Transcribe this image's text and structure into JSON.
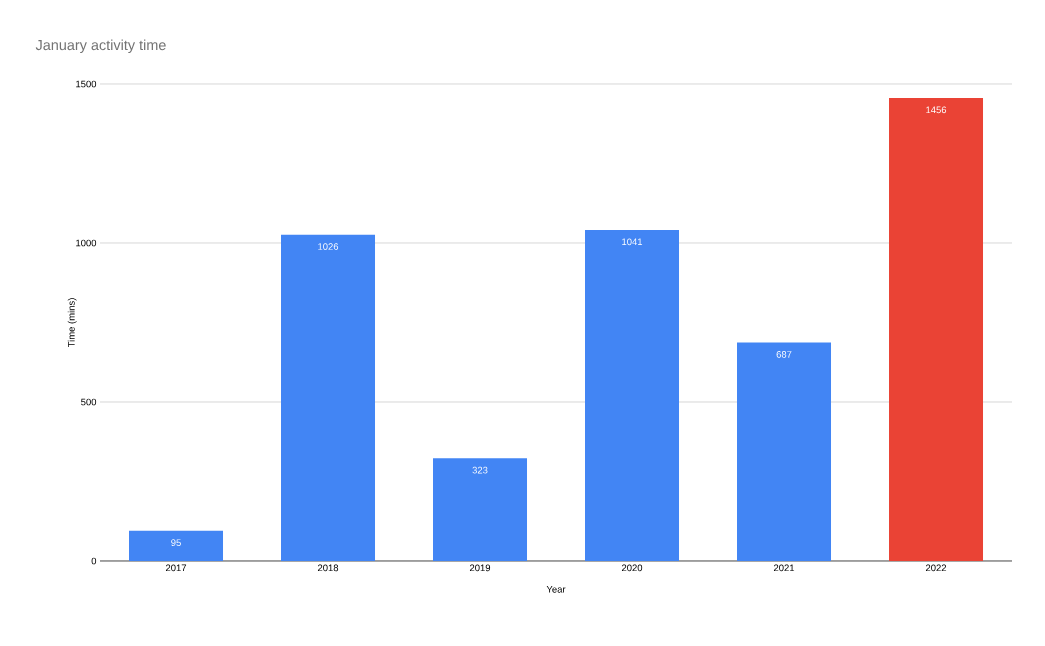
{
  "chart_data": {
    "type": "bar",
    "title": "January activity time",
    "xlabel": "Year",
    "ylabel": "Time (mins)",
    "categories": [
      "2017",
      "2018",
      "2019",
      "2020",
      "2021",
      "2022"
    ],
    "values": [
      95,
      1026,
      323,
      1041,
      687,
      1456
    ],
    "colors": [
      "#4285f4",
      "#4285f4",
      "#4285f4",
      "#4285f4",
      "#4285f4",
      "#ea4335"
    ],
    "ylim": [
      0,
      1500
    ],
    "yticks": [
      0,
      500,
      1000,
      1500
    ],
    "grid": "y",
    "data_labels": true
  }
}
